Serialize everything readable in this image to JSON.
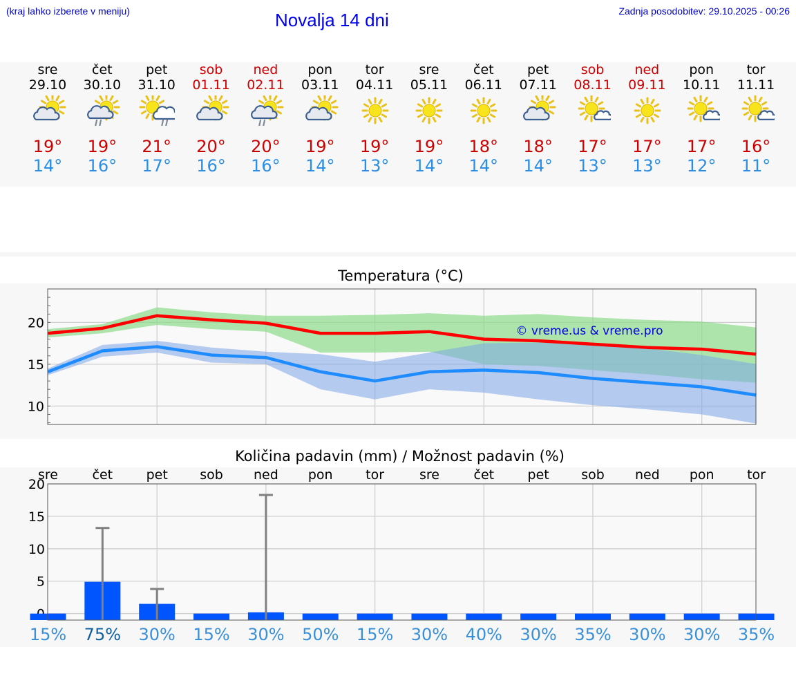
{
  "header": {
    "hint": "(kraj lahko izberete v meniju)",
    "title": "Novalja 14 dni",
    "updated": "Zadnja posodobitev: 29.10.2025 - 00:26"
  },
  "days": [
    {
      "name": "sre",
      "date": "29.10",
      "weekend": false,
      "icon": "sun-cloud-icon",
      "max": "19°",
      "min": "14°"
    },
    {
      "name": "čet",
      "date": "30.10",
      "weekend": false,
      "icon": "sun-cloud-rain-icon",
      "max": "19°",
      "min": "16°"
    },
    {
      "name": "pet",
      "date": "31.10",
      "weekend": false,
      "icon": "sun-rain-cloud-icon",
      "max": "21°",
      "min": "17°"
    },
    {
      "name": "sob",
      "date": "01.11",
      "weekend": true,
      "icon": "sun-cloud-icon",
      "max": "20°",
      "min": "16°"
    },
    {
      "name": "ned",
      "date": "02.11",
      "weekend": true,
      "icon": "sun-cloud-rain-icon",
      "max": "20°",
      "min": "16°"
    },
    {
      "name": "pon",
      "date": "03.11",
      "weekend": false,
      "icon": "sun-cloud-icon",
      "max": "19°",
      "min": "14°"
    },
    {
      "name": "tor",
      "date": "04.11",
      "weekend": false,
      "icon": "sun-icon",
      "max": "19°",
      "min": "13°"
    },
    {
      "name": "sre",
      "date": "05.11",
      "weekend": false,
      "icon": "sun-icon",
      "max": "19°",
      "min": "14°"
    },
    {
      "name": "čet",
      "date": "06.11",
      "weekend": false,
      "icon": "sun-icon",
      "max": "18°",
      "min": "14°"
    },
    {
      "name": "pet",
      "date": "07.11",
      "weekend": false,
      "icon": "sun-cloud-icon",
      "max": "18°",
      "min": "14°"
    },
    {
      "name": "sob",
      "date": "08.11",
      "weekend": true,
      "icon": "sun-small-cloud-icon",
      "max": "17°",
      "min": "13°"
    },
    {
      "name": "ned",
      "date": "09.11",
      "weekend": true,
      "icon": "sun-icon",
      "max": "17°",
      "min": "13°"
    },
    {
      "name": "pon",
      "date": "10.11",
      "weekend": false,
      "icon": "sun-small-cloud-icon",
      "max": "17°",
      "min": "12°"
    },
    {
      "name": "tor",
      "date": "11.11",
      "weekend": false,
      "icon": "sun-small-cloud-icon",
      "max": "16°",
      "min": "11°"
    }
  ],
  "chart_data": [
    {
      "type": "line",
      "title": "Temperatura (°C)",
      "watermark": "© vreme.us & vreme.pro",
      "ylim": [
        7.8,
        24
      ],
      "yticks": [
        10,
        15,
        20
      ],
      "x": [
        0,
        1,
        2,
        3,
        4,
        5,
        6,
        7,
        8,
        9,
        10,
        11,
        12,
        13
      ],
      "series": [
        {
          "name": "max",
          "color": "#ff0000",
          "values": [
            18.7,
            19.3,
            20.8,
            20.3,
            19.9,
            18.7,
            18.7,
            18.9,
            18.0,
            17.8,
            17.4,
            17.0,
            16.8,
            16.2
          ]
        },
        {
          "name": "min",
          "color": "#1e8cff",
          "values": [
            14.1,
            16.6,
            17.1,
            16.1,
            15.8,
            14.1,
            13.0,
            14.1,
            14.3,
            14.0,
            13.3,
            12.8,
            12.3,
            11.3
          ]
        }
      ],
      "bands": [
        {
          "name": "max-range",
          "color": "#8ddc8a",
          "low": [
            18.2,
            18.7,
            19.7,
            19.2,
            18.9,
            16.4,
            16.4,
            16.5,
            15.0,
            14.8,
            14.3,
            13.8,
            13.2,
            12.8
          ],
          "high": [
            19.2,
            19.8,
            21.8,
            21.2,
            20.8,
            20.8,
            20.9,
            21.1,
            20.8,
            21.0,
            20.6,
            20.3,
            20.1,
            19.4
          ]
        },
        {
          "name": "min-range",
          "color": "#7ba6e8",
          "low": [
            13.7,
            15.9,
            16.4,
            15.2,
            15.0,
            12.0,
            10.8,
            12.0,
            11.6,
            10.8,
            10.1,
            9.6,
            9.0,
            7.9
          ],
          "high": [
            14.5,
            17.3,
            17.8,
            17.0,
            16.5,
            16.2,
            15.3,
            16.4,
            17.5,
            17.6,
            17.3,
            16.9,
            16.1,
            15.0
          ]
        }
      ]
    },
    {
      "type": "bar",
      "title": "Količina padavin (mm) / Možnost padavin (%)",
      "ylim": [
        -1,
        20
      ],
      "yticks": [
        0,
        5,
        10,
        15,
        20
      ],
      "categories": [
        "sre",
        "čet",
        "pet",
        "sob",
        "ned",
        "pon",
        "tor",
        "sre",
        "čet",
        "pet",
        "sob",
        "ned",
        "pon",
        "tor"
      ],
      "values": [
        0,
        4.9,
        1.5,
        0,
        0.2,
        0,
        0,
        0,
        0,
        0,
        0,
        0,
        0,
        0
      ],
      "error_max": [
        0,
        13.2,
        3.8,
        0,
        18.3,
        0,
        0,
        0,
        0,
        0,
        0,
        0,
        0,
        0
      ],
      "chance": [
        "15%",
        "75%",
        "30%",
        "15%",
        "30%",
        "50%",
        "15%",
        "30%",
        "40%",
        "30%",
        "35%",
        "30%",
        "30%",
        "35%"
      ],
      "bar_color": "#0055ff",
      "error_color": "#808080"
    }
  ]
}
